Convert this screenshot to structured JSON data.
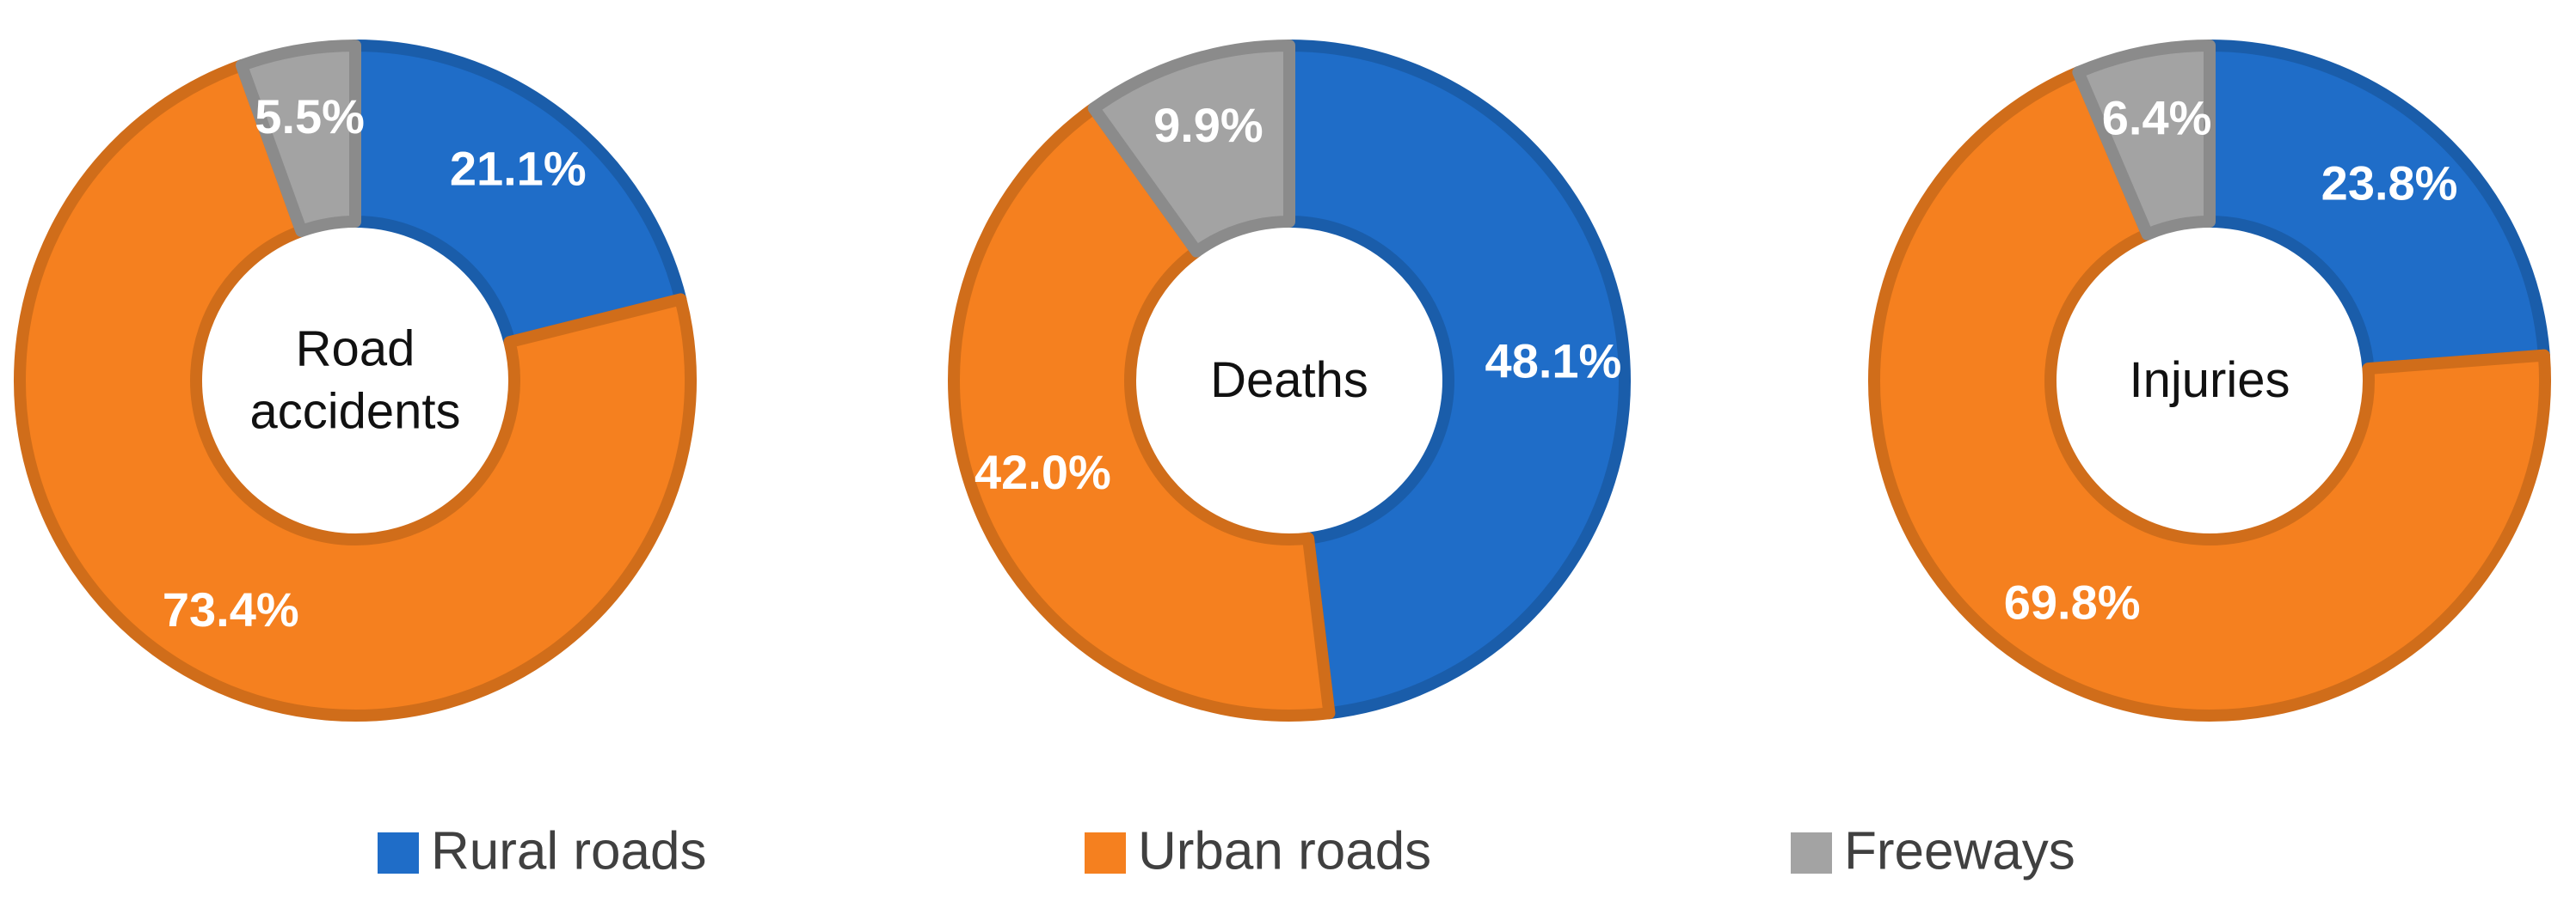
{
  "chart_data": {
    "type": "donut",
    "categories": [
      "Rural roads",
      "Urban roads",
      "Freeways"
    ],
    "colors": [
      "#1f6dc8",
      "#f5801f",
      "#a3a3a3"
    ],
    "series": [
      {
        "name": "Road accidents",
        "values": [
          21.1,
          73.4,
          5.5
        ],
        "value_labels": [
          "21.1%",
          "73.4%",
          "5.5%"
        ]
      },
      {
        "name": "Deaths",
        "values": [
          48.1,
          42.0,
          9.9
        ],
        "value_labels": [
          "48.1%",
          "42.0%",
          "9.9%"
        ]
      },
      {
        "name": "Injuries",
        "values": [
          23.8,
          69.8,
          6.4
        ],
        "value_labels": [
          "23.8%",
          "69.8%",
          "6.4%"
        ]
      }
    ]
  }
}
